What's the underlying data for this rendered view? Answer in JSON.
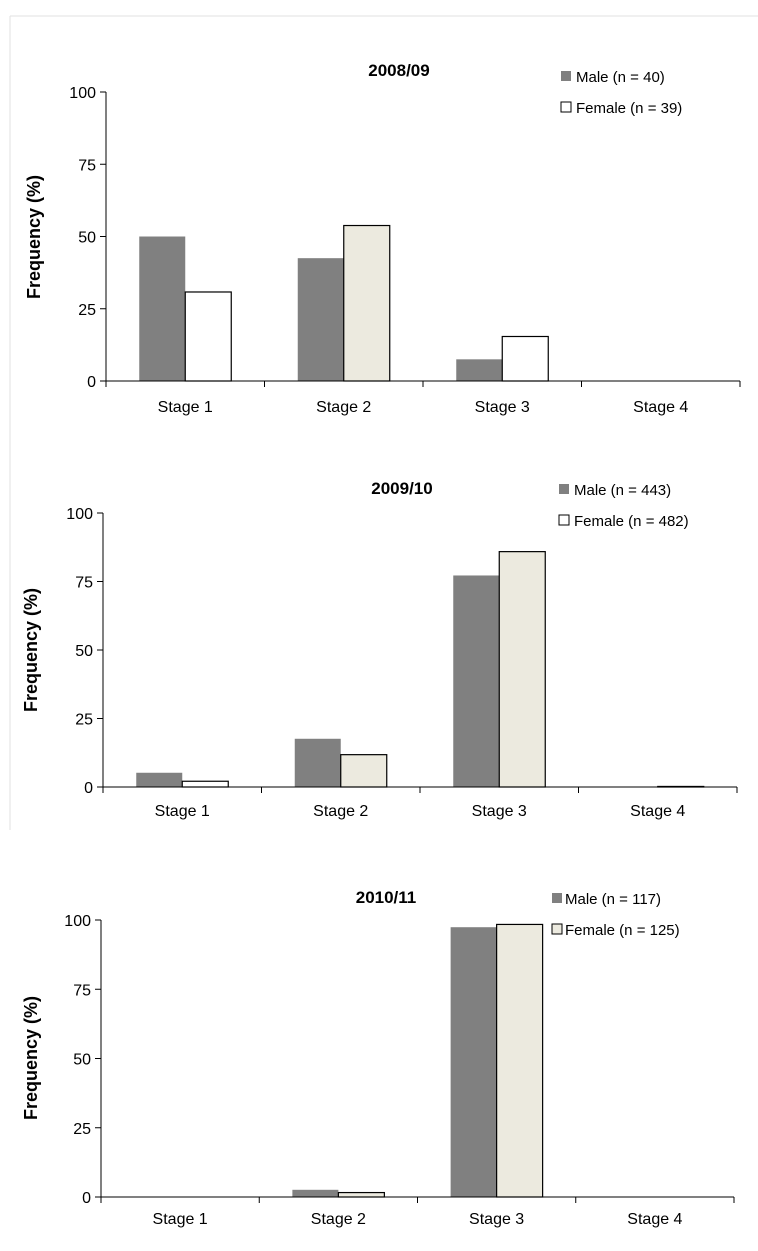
{
  "chart_data": [
    {
      "type": "bar",
      "title": "2008/09",
      "ylabel": "Frequency (%)",
      "xlabel": "",
      "ylim": [
        0,
        100
      ],
      "yticks": [
        0,
        25,
        50,
        75,
        100
      ],
      "categories": [
        "Stage 1",
        "Stage 2",
        "Stage 3",
        "Stage 4"
      ],
      "legend_position": "top-right",
      "grid": false,
      "series": [
        {
          "name": "Male (n = 40)",
          "values": [
            50,
            42.5,
            7.5,
            0
          ],
          "color": "#808080"
        },
        {
          "name": "Female (n = 39)",
          "values": [
            30.8,
            53.8,
            15.4,
            0
          ],
          "color": "#ffffff",
          "alt_color": "#eceadf"
        }
      ]
    },
    {
      "type": "bar",
      "title": "2009/10",
      "ylabel": "Frequency (%)",
      "xlabel": "",
      "ylim": [
        0,
        100
      ],
      "yticks": [
        0,
        25,
        50,
        75,
        100
      ],
      "categories": [
        "Stage 1",
        "Stage 2",
        "Stage 3",
        "Stage 4"
      ],
      "legend_position": "top-right",
      "grid": false,
      "series": [
        {
          "name": "Male (n = 443)",
          "values": [
            5.2,
            17.6,
            77.2,
            0
          ],
          "color": "#808080"
        },
        {
          "name": "Female (n = 482)",
          "values": [
            2.1,
            11.8,
            85.9,
            0.2
          ],
          "color": "#eceadf"
        }
      ]
    },
    {
      "type": "bar",
      "title": "2010/11",
      "ylabel": "Frequency (%)",
      "xlabel": "",
      "ylim": [
        0,
        100
      ],
      "yticks": [
        0,
        25,
        50,
        75,
        100
      ],
      "categories": [
        "Stage 1",
        "Stage 2",
        "Stage 3",
        "Stage 4"
      ],
      "legend_position": "top-right",
      "grid": false,
      "series": [
        {
          "name": "Male (n = 117)",
          "values": [
            0,
            2.6,
            97.4,
            0
          ],
          "color": "#808080"
        },
        {
          "name": "Female (n = 125)",
          "values": [
            0,
            1.6,
            98.4,
            0
          ],
          "color": "#eceadf"
        }
      ]
    }
  ]
}
